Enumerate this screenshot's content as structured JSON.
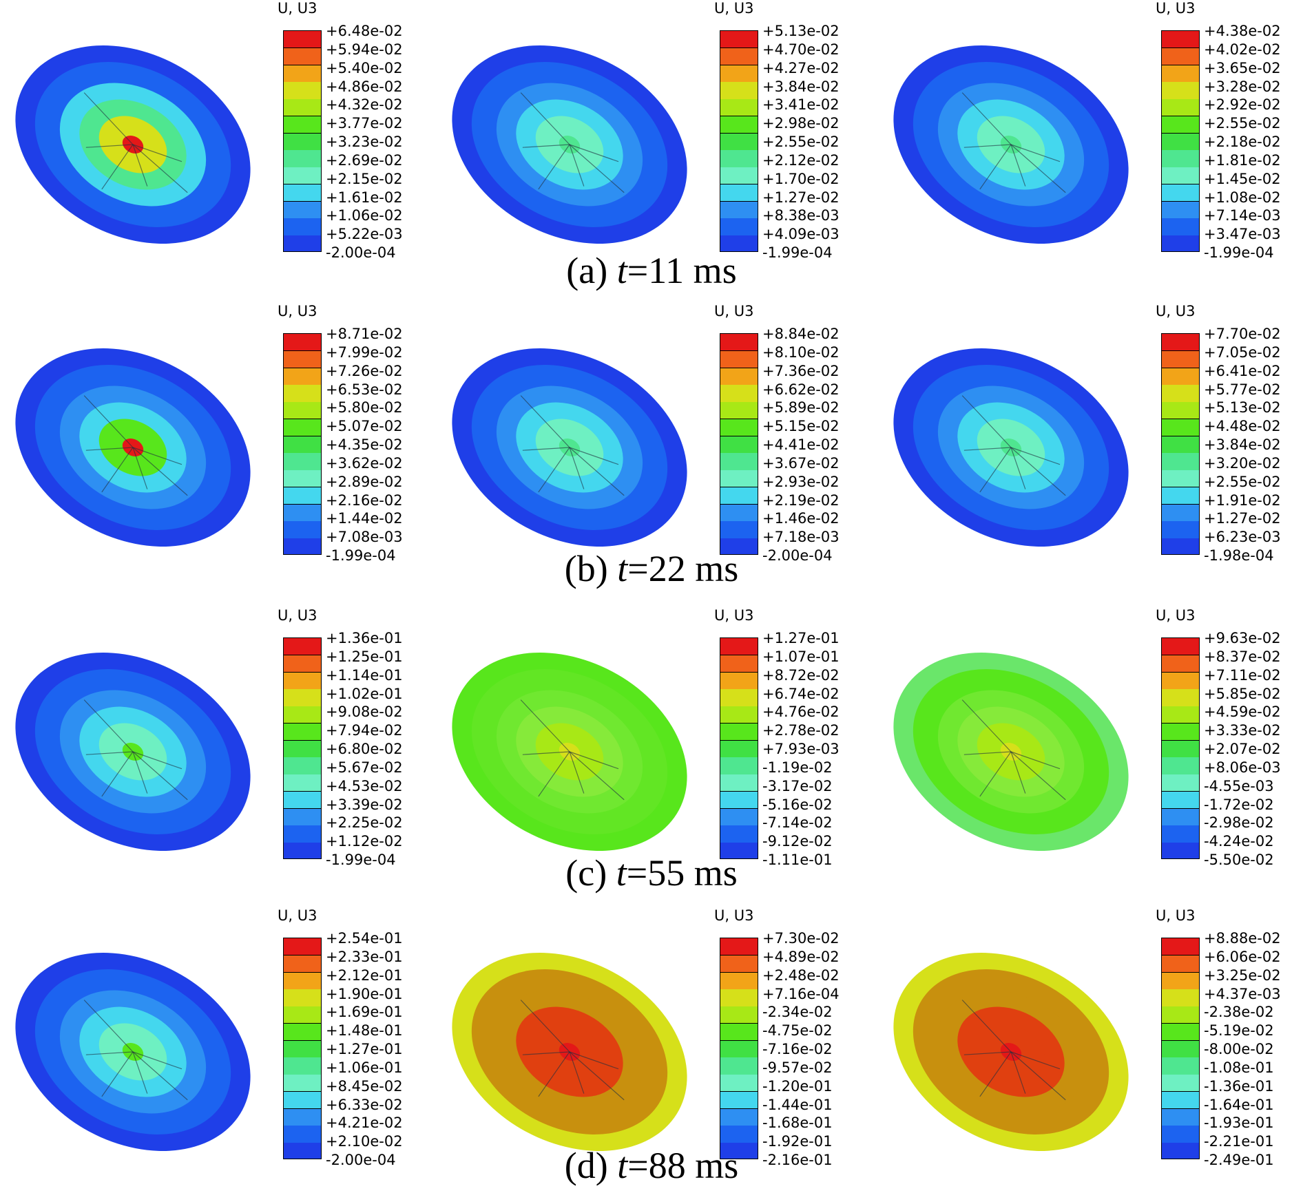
{
  "figure": {
    "legend_colors": [
      "#1f3fe8",
      "#1c63f0",
      "#2e8ff2",
      "#44d7ee",
      "#6ef0c2",
      "#4fe690",
      "#40e044",
      "#58e61c",
      "#a8e816",
      "#d6e01a",
      "#f2a418",
      "#f0621a",
      "#e41818"
    ],
    "rows": [
      {
        "caption_prefix": "(a) ",
        "caption_var": "t",
        "caption_suffix": "=11 ms",
        "panels": [
          {
            "title": "U, U3",
            "disk_colors": [
              "#1f3fe8",
              "#1c63f0",
              "#44d7ee",
              "#4fe690",
              "#d6e01a",
              "#e41818"
            ],
            "labels": [
              "+6.48e-02",
              "+5.94e-02",
              "+5.40e-02",
              "+4.86e-02",
              "+4.32e-02",
              "+3.77e-02",
              "+3.23e-02",
              "+2.69e-02",
              "+2.15e-02",
              "+1.61e-02",
              "+1.06e-02",
              "+5.22e-03",
              "-2.00e-04"
            ]
          },
          {
            "title": "U, U3",
            "disk_colors": [
              "#1f3fe8",
              "#1c63f0",
              "#2e8ff2",
              "#44d7ee",
              "#6ef0c2",
              "#4fe690"
            ],
            "labels": [
              "+5.13e-02",
              "+4.70e-02",
              "+4.27e-02",
              "+3.84e-02",
              "+3.41e-02",
              "+2.98e-02",
              "+2.55e-02",
              "+2.12e-02",
              "+1.70e-02",
              "+1.27e-02",
              "+8.38e-03",
              "+4.09e-03",
              "-1.99e-04"
            ]
          },
          {
            "title": "U, U3",
            "disk_colors": [
              "#1f3fe8",
              "#1c63f0",
              "#2e8ff2",
              "#44d7ee",
              "#6ef0c2",
              "#4fe690"
            ],
            "labels": [
              "+4.38e-02",
              "+4.02e-02",
              "+3.65e-02",
              "+3.28e-02",
              "+2.92e-02",
              "+2.55e-02",
              "+2.18e-02",
              "+1.81e-02",
              "+1.45e-02",
              "+1.08e-02",
              "+7.14e-03",
              "+3.47e-03",
              "-1.99e-04"
            ]
          }
        ]
      },
      {
        "caption_prefix": "(b) ",
        "caption_var": "t",
        "caption_suffix": "=22 ms",
        "panels": [
          {
            "title": "U, U3",
            "disk_colors": [
              "#1f3fe8",
              "#1c63f0",
              "#2e8ff2",
              "#44d7ee",
              "#58e61c",
              "#e41818"
            ],
            "labels": [
              "+8.71e-02",
              "+7.99e-02",
              "+7.26e-02",
              "+6.53e-02",
              "+5.80e-02",
              "+5.07e-02",
              "+4.35e-02",
              "+3.62e-02",
              "+2.89e-02",
              "+2.16e-02",
              "+1.44e-02",
              "+7.08e-03",
              "-1.99e-04"
            ]
          },
          {
            "title": "U, U3",
            "disk_colors": [
              "#1f3fe8",
              "#1c63f0",
              "#2e8ff2",
              "#44d7ee",
              "#6ef0c2",
              "#4fe690"
            ],
            "labels": [
              "+8.84e-02",
              "+8.10e-02",
              "+7.36e-02",
              "+6.62e-02",
              "+5.89e-02",
              "+5.15e-02",
              "+4.41e-02",
              "+3.67e-02",
              "+2.93e-02",
              "+2.19e-02",
              "+1.46e-02",
              "+7.18e-03",
              "-2.00e-04"
            ]
          },
          {
            "title": "U, U3",
            "disk_colors": [
              "#1f3fe8",
              "#1c63f0",
              "#2e8ff2",
              "#44d7ee",
              "#6ef0c2",
              "#4fe690"
            ],
            "labels": [
              "+7.70e-02",
              "+7.05e-02",
              "+6.41e-02",
              "+5.77e-02",
              "+5.13e-02",
              "+4.48e-02",
              "+3.84e-02",
              "+3.20e-02",
              "+2.55e-02",
              "+1.91e-02",
              "+1.27e-02",
              "+6.23e-03",
              "-1.98e-04"
            ]
          }
        ]
      },
      {
        "caption_prefix": "(c) ",
        "caption_var": "t",
        "caption_suffix": "=55 ms",
        "panels": [
          {
            "title": "U, U3",
            "disk_colors": [
              "#1f3fe8",
              "#1c63f0",
              "#2e8ff2",
              "#44d7ee",
              "#6ef0c2",
              "#58e61c"
            ],
            "labels": [
              "+1.36e-01",
              "+1.25e-01",
              "+1.14e-01",
              "+1.02e-01",
              "+9.08e-02",
              "+7.94e-02",
              "+6.80e-02",
              "+5.67e-02",
              "+4.53e-02",
              "+3.39e-02",
              "+2.25e-02",
              "+1.12e-02",
              "-1.99e-04"
            ]
          },
          {
            "title": "U, U3",
            "disk_colors": [
              "#58e61c",
              "#62e624",
              "#70e830",
              "#86ea3a",
              "#a8e816",
              "#d6e01a"
            ],
            "labels": [
              "+1.27e-01",
              "+1.07e-01",
              "+8.72e-02",
              "+6.74e-02",
              "+4.76e-02",
              "+2.78e-02",
              "+7.93e-03",
              "-1.19e-02",
              "-3.17e-02",
              "-5.16e-02",
              "-7.14e-02",
              "-9.12e-02",
              "-1.11e-01"
            ]
          },
          {
            "title": "U, U3",
            "disk_colors": [
              "#6ae66a",
              "#58e61c",
              "#70e830",
              "#86ea3a",
              "#a8e816",
              "#d6e01a"
            ],
            "labels": [
              "+9.63e-02",
              "+8.37e-02",
              "+7.11e-02",
              "+5.85e-02",
              "+4.59e-02",
              "+3.33e-02",
              "+2.07e-02",
              "+8.06e-03",
              "-4.55e-03",
              "-1.72e-02",
              "-2.98e-02",
              "-4.24e-02",
              "-5.50e-02"
            ]
          }
        ]
      },
      {
        "caption_prefix": "(d) ",
        "caption_var": "t",
        "caption_suffix": "=88 ms",
        "panels": [
          {
            "title": "U, U3",
            "disk_colors": [
              "#1f3fe8",
              "#1c63f0",
              "#2e8ff2",
              "#44d7ee",
              "#6ef0c2",
              "#58e61c"
            ],
            "labels": [
              "+2.54e-01",
              "+2.33e-01",
              "+2.12e-01",
              "+1.90e-01",
              "+1.69e-01",
              "+1.48e-01",
              "+1.27e-01",
              "+1.06e-01",
              "+8.45e-02",
              "+6.33e-02",
              "+4.21e-02",
              "+2.10e-02",
              "-2.00e-04"
            ]
          },
          {
            "title": "U, U3",
            "disk_colors": [
              "#d6e01a",
              "#c8900e",
              "#c8900e",
              "#e04010",
              "#e04010",
              "#e41818"
            ],
            "labels": [
              "+7.30e-02",
              "+4.89e-02",
              "+2.48e-02",
              "+7.16e-04",
              "-2.34e-02",
              "-4.75e-02",
              "-7.16e-02",
              "-9.57e-02",
              "-1.20e-01",
              "-1.44e-01",
              "-1.68e-01",
              "-1.92e-01",
              "-2.16e-01"
            ]
          },
          {
            "title": "U, U3",
            "disk_colors": [
              "#d6e01a",
              "#c8900e",
              "#c8900e",
              "#e04010",
              "#e04010",
              "#e41818"
            ],
            "labels": [
              "+8.88e-02",
              "+6.06e-02",
              "+3.25e-02",
              "+4.37e-03",
              "-2.38e-02",
              "-5.19e-02",
              "-8.00e-02",
              "-1.08e-01",
              "-1.36e-01",
              "-1.64e-01",
              "-1.93e-01",
              "-2.21e-01",
              "-2.49e-01"
            ]
          }
        ]
      }
    ]
  }
}
